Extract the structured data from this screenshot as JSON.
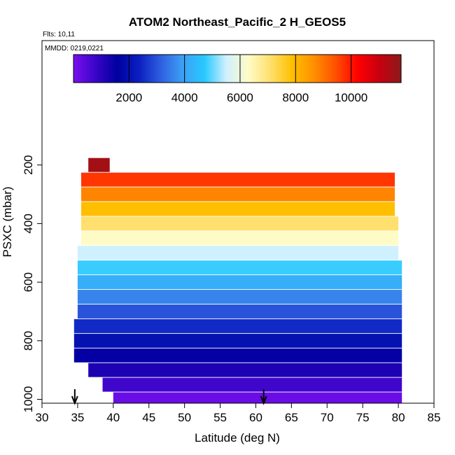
{
  "chart_data": {
    "type": "heatmap",
    "title": "ATOM2 Northeast_Pacific_2 H_GEOS5",
    "annotations": [
      "Flts: 10,11",
      "MMDD: 0219,0221"
    ],
    "xlabel": "Latitude (deg N)",
    "ylabel": "PSXC (mbar)",
    "xlim": [
      30,
      85
    ],
    "ylim": [
      1000,
      0
    ],
    "xticks": [
      "30",
      "35",
      "40",
      "45",
      "50",
      "55",
      "60",
      "65",
      "70",
      "75",
      "80",
      "85"
    ],
    "yticks": [
      "200",
      "400",
      "600",
      "800",
      "1000"
    ],
    "colorbar": {
      "range": [
        0,
        11800
      ],
      "ticks": [
        "2000",
        "4000",
        "6000",
        "8000",
        "10000"
      ],
      "colors": [
        "#7a0ff0",
        "#3a05c8",
        "#0000a0",
        "#0a1fbf",
        "#2f5fe0",
        "#3da0f5",
        "#28c8ff",
        "#d0f0ff",
        "#fffbc8",
        "#ffe070",
        "#ffc000",
        "#ff9000",
        "#ff5000",
        "#ff0000",
        "#c80010",
        "#8b1a1a"
      ]
    },
    "arrows_at_latitude": [
      34.6,
      61.1
    ],
    "series": [
      {
        "pressure": 1000,
        "x_start": 40.0,
        "x_end": 80.5,
        "value": 200
      },
      {
        "pressure": 950,
        "x_start": 38.5,
        "x_end": 80.5,
        "value": 700
      },
      {
        "pressure": 900,
        "x_start": 36.5,
        "x_end": 80.5,
        "value": 1200
      },
      {
        "pressure": 850,
        "x_start": 34.5,
        "x_end": 80.5,
        "value": 1500
      },
      {
        "pressure": 800,
        "x_start": 34.5,
        "x_end": 80.5,
        "value": 2000
      },
      {
        "pressure": 750,
        "x_start": 34.5,
        "x_end": 80.5,
        "value": 2500
      },
      {
        "pressure": 700,
        "x_start": 35.0,
        "x_end": 80.5,
        "value": 3000
      },
      {
        "pressure": 650,
        "x_start": 35.0,
        "x_end": 80.5,
        "value": 3600
      },
      {
        "pressure": 600,
        "x_start": 35.0,
        "x_end": 80.5,
        "value": 4200
      },
      {
        "pressure": 550,
        "x_start": 35.0,
        "x_end": 80.5,
        "value": 4800
      },
      {
        "pressure": 500,
        "x_start": 35.0,
        "x_end": 80.0,
        "value": 5500
      },
      {
        "pressure": 450,
        "x_start": 35.5,
        "x_end": 80.0,
        "value": 6300
      },
      {
        "pressure": 400,
        "x_start": 35.5,
        "x_end": 80.0,
        "value": 7100
      },
      {
        "pressure": 350,
        "x_start": 35.5,
        "x_end": 79.5,
        "value": 7900
      },
      {
        "pressure": 300,
        "x_start": 35.5,
        "x_end": 79.5,
        "value": 8800
      },
      {
        "pressure": 250,
        "x_start": 35.5,
        "x_end": 79.5,
        "value": 9700
      },
      {
        "pressure": 200,
        "x_start": 36.5,
        "x_end": 39.5,
        "value": 11500
      }
    ]
  }
}
